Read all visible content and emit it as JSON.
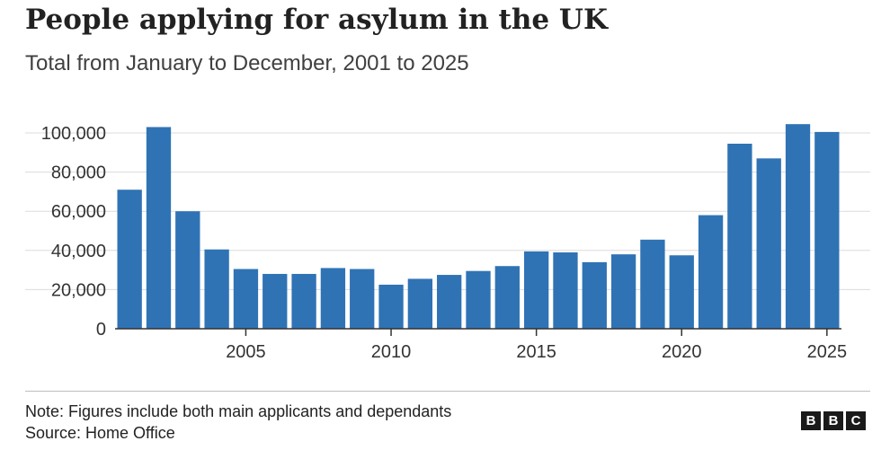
{
  "chart_data": {
    "type": "bar",
    "title": "People applying for asylum in the UK",
    "subtitle": "Total from January to December, 2001 to 2025",
    "categories": [
      2001,
      2002,
      2003,
      2004,
      2005,
      2006,
      2007,
      2008,
      2009,
      2010,
      2011,
      2012,
      2013,
      2014,
      2015,
      2016,
      2017,
      2018,
      2019,
      2020,
      2021,
      2022,
      2023,
      2024,
      2025
    ],
    "values": [
      71000,
      103000,
      60000,
      40500,
      30500,
      28000,
      28000,
      31000,
      30500,
      22500,
      25500,
      27500,
      29500,
      32000,
      39500,
      39000,
      34000,
      38000,
      45500,
      37500,
      58000,
      94500,
      87000,
      104500,
      100500
    ],
    "ylim": [
      0,
      105000
    ],
    "yticks": [
      0,
      20000,
      40000,
      60000,
      80000,
      100000
    ],
    "ytick_labels": [
      "0",
      "20,000",
      "40,000",
      "60,000",
      "80,000",
      "100,000"
    ],
    "xticks": [
      2005,
      2010,
      2015,
      2020,
      2025
    ],
    "xtick_labels": [
      "2005",
      "2010",
      "2015",
      "2020",
      "2025"
    ],
    "xlabel": "",
    "ylabel": "",
    "grid": true,
    "bar_color": "#2f73b5"
  },
  "footer": {
    "note": "Note: Figures include both main applicants and dependants",
    "source": "Source: Home Office",
    "logo_letters": [
      "B",
      "B",
      "C"
    ]
  }
}
